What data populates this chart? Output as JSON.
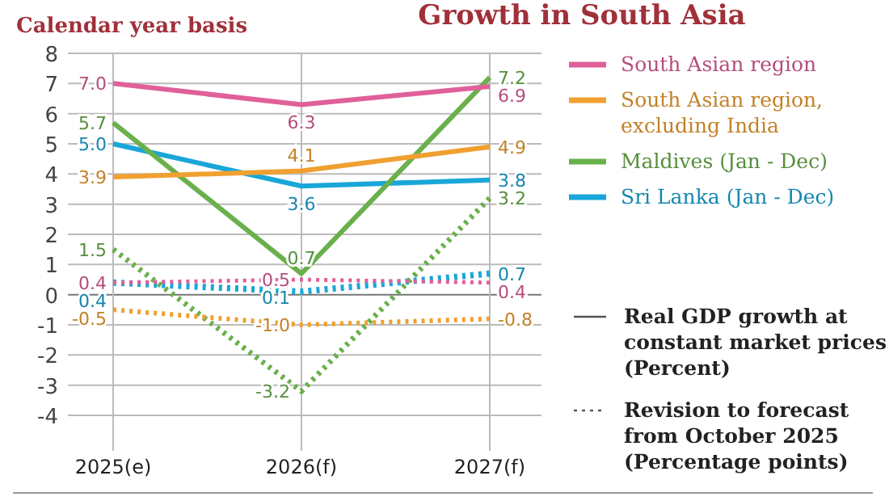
{
  "chart_data": {
    "type": "line",
    "title": "Growth in South Asia",
    "ylabel": "Calendar year basis",
    "categories": [
      "2025(e)",
      "2026(f)",
      "2027(f)"
    ],
    "series": [
      {
        "name": "South Asian region",
        "color": "#e0609a",
        "values": [
          7.0,
          6.3,
          6.9
        ],
        "value_labels": [
          "7.0",
          "6.3",
          "6.9"
        ],
        "line_style": "solid"
      },
      {
        "name": "South Asian region, excluding India",
        "color": "#f0a030",
        "values": [
          3.9,
          4.1,
          4.9
        ],
        "value_labels": [
          "3.9",
          "4.1",
          "4.9"
        ],
        "line_style": "solid"
      },
      {
        "name": "Maldives (Jan - Dec)",
        "color": "#6ab04c",
        "values": [
          5.7,
          0.7,
          7.2
        ],
        "value_labels": [
          "5.7",
          "0.7",
          "7.2"
        ],
        "line_style": "solid"
      },
      {
        "name": "Sri Lanka (Jan - Dec)",
        "color": "#1aa6d8",
        "values": [
          5.0,
          3.6,
          3.8
        ],
        "value_labels": [
          "5.0",
          "3.6",
          "3.8"
        ],
        "line_style": "solid"
      },
      {
        "color": "#e0609a",
        "values": [
          0.4,
          0.5,
          0.4
        ],
        "value_labels": [
          "0.4",
          "0.5",
          "0.4"
        ],
        "line_style": "dotted"
      },
      {
        "color": "#f0a030",
        "values": [
          -0.5,
          -1.0,
          -0.8
        ],
        "value_labels": [
          "-0.5",
          "-1.0",
          "-0.8"
        ],
        "line_style": "dotted"
      },
      {
        "color": "#6ab04c",
        "values": [
          1.5,
          -3.2,
          3.2
        ],
        "value_labels": [
          "1.5",
          "-3.2",
          "3.2"
        ],
        "line_style": "dotted"
      },
      {
        "color": "#1aa6d8",
        "values": [
          0.4,
          0.1,
          0.7
        ],
        "value_labels": [
          "0.4",
          "0.1",
          "0.7"
        ],
        "line_style": "dotted"
      }
    ],
    "ylim": [
      -4,
      8
    ],
    "yticks": [
      -4,
      -3,
      -2,
      -1,
      0,
      1,
      2,
      3,
      4,
      5,
      6,
      7,
      8
    ],
    "grid": true,
    "legend": "right",
    "annotations": [
      "Real GDP growth at constant market prices (Percent)",
      "Revision to forecast from October 2025 (Percentage points)"
    ]
  }
}
